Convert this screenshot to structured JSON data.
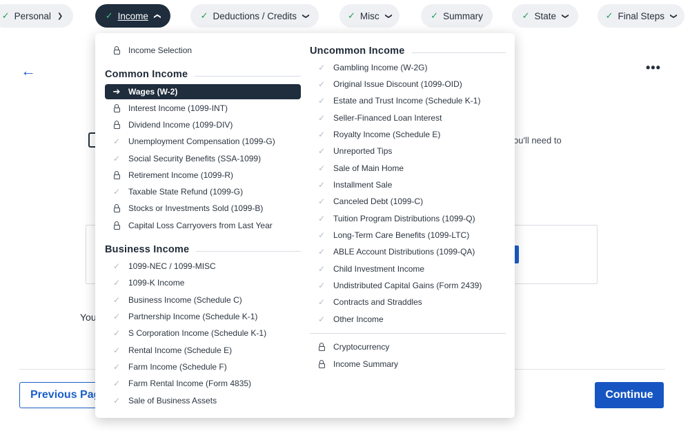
{
  "nav": {
    "tabs": [
      {
        "label": "Personal",
        "complete": true,
        "active": false
      },
      {
        "label": "Income",
        "complete": true,
        "active": true
      },
      {
        "label": "Deductions / Credits",
        "complete": true,
        "active": false
      },
      {
        "label": "Misc",
        "complete": true,
        "active": false
      },
      {
        "label": "Summary",
        "complete": true,
        "active": false
      },
      {
        "label": "State",
        "complete": true,
        "active": false
      },
      {
        "label": "Final Steps",
        "complete": true,
        "active": false
      }
    ]
  },
  "background": {
    "partial_text_right": "ou'll need to",
    "partial_text_bottom": "You",
    "previous_label": "Previous Page",
    "continue_label": "Continue"
  },
  "dropdown": {
    "left": {
      "top_item": {
        "label": "Income Selection",
        "icon": "lock-icon"
      },
      "common_heading": "Common Income",
      "common_items": [
        {
          "label": "Wages (W-2)",
          "icon": "arrow-right-icon",
          "selected": true
        },
        {
          "label": "Interest Income (1099-INT)",
          "icon": "lock-icon"
        },
        {
          "label": "Dividend Income (1099-DIV)",
          "icon": "lock-icon"
        },
        {
          "label": "Unemployment Compensation (1099-G)",
          "icon": "check-icon"
        },
        {
          "label": "Social Security Benefits (SSA-1099)",
          "icon": "check-icon"
        },
        {
          "label": "Retirement Income (1099-R)",
          "icon": "lock-icon"
        },
        {
          "label": "Taxable State Refund (1099-G)",
          "icon": "check-icon"
        },
        {
          "label": "Stocks or Investments Sold (1099-B)",
          "icon": "lock-icon"
        },
        {
          "label": "Capital Loss Carryovers from Last Year",
          "icon": "lock-icon"
        }
      ],
      "business_heading": "Business Income",
      "business_items": [
        {
          "label": "1099-NEC / 1099-MISC",
          "icon": "check-icon"
        },
        {
          "label": "1099-K Income",
          "icon": "check-icon"
        },
        {
          "label": "Business Income (Schedule C)",
          "icon": "check-icon"
        },
        {
          "label": "Partnership Income (Schedule K-1)",
          "icon": "check-icon"
        },
        {
          "label": "S Corporation Income (Schedule K-1)",
          "icon": "check-icon"
        },
        {
          "label": "Rental Income (Schedule E)",
          "icon": "check-icon"
        },
        {
          "label": "Farm Income (Schedule F)",
          "icon": "check-icon"
        },
        {
          "label": "Farm Rental Income (Form 4835)",
          "icon": "check-icon"
        },
        {
          "label": "Sale of Business Assets",
          "icon": "check-icon"
        }
      ]
    },
    "right": {
      "uncommon_heading": "Uncommon Income",
      "uncommon_items": [
        {
          "label": "Gambling Income (W-2G)",
          "icon": "check-icon"
        },
        {
          "label": "Original Issue Discount (1099-OID)",
          "icon": "check-icon"
        },
        {
          "label": "Estate and Trust Income (Schedule K-1)",
          "icon": "check-icon"
        },
        {
          "label": "Seller-Financed Loan Interest",
          "icon": "check-icon"
        },
        {
          "label": "Royalty Income (Schedule E)",
          "icon": "check-icon"
        },
        {
          "label": "Unreported Tips",
          "icon": "check-icon"
        },
        {
          "label": "Sale of Main Home",
          "icon": "check-icon"
        },
        {
          "label": "Installment Sale",
          "icon": "check-icon"
        },
        {
          "label": "Canceled Debt (1099-C)",
          "icon": "check-icon"
        },
        {
          "label": "Tuition Program Distributions (1099-Q)",
          "icon": "check-icon"
        },
        {
          "label": "Long-Term Care Benefits (1099-LTC)",
          "icon": "check-icon"
        },
        {
          "label": "ABLE Account Distributions (1099-QA)",
          "icon": "check-icon"
        },
        {
          "label": "Child Investment Income",
          "icon": "check-icon"
        },
        {
          "label": "Undistributed Capital Gains (Form 2439)",
          "icon": "check-icon"
        },
        {
          "label": "Contracts and Straddles",
          "icon": "check-icon"
        },
        {
          "label": "Other Income",
          "icon": "check-icon"
        }
      ],
      "footer_items": [
        {
          "label": "Cryptocurrency",
          "icon": "lock-icon"
        },
        {
          "label": "Income Summary",
          "icon": "lock-icon"
        }
      ]
    }
  },
  "colors": {
    "accent": "#1a5fc8",
    "active_tab_bg": "#1f2d3d",
    "check_green": "#1f9d55"
  }
}
